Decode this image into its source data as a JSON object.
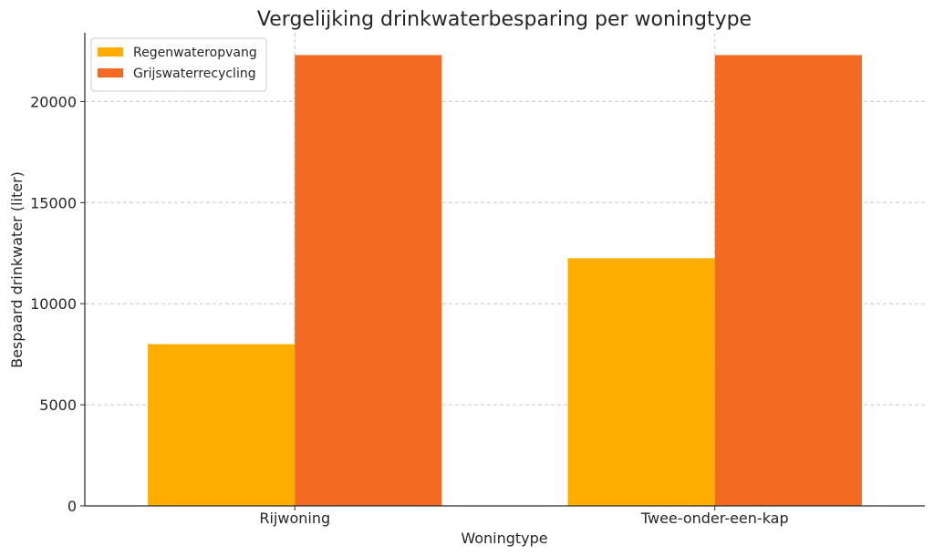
{
  "chart_data": {
    "type": "bar",
    "title": "Vergelijking drinkwaterbesparing per woningtype",
    "xlabel": "Woningtype",
    "ylabel": "Bespaard drinkwater (liter)",
    "categories": [
      "Rijwoning",
      "Twee-onder-een-kap"
    ],
    "series": [
      {
        "name": "Regenwateropvang",
        "color": "#FFAE00",
        "values": [
          8000,
          12250
        ]
      },
      {
        "name": "Grijswaterrecycling",
        "color": "#F36A22",
        "values": [
          22300,
          22300
        ]
      }
    ],
    "ylim": [
      0,
      23400
    ],
    "yticks": [
      0,
      5000,
      10000,
      15000,
      20000
    ],
    "grid": true,
    "legend_position": "top-left"
  }
}
